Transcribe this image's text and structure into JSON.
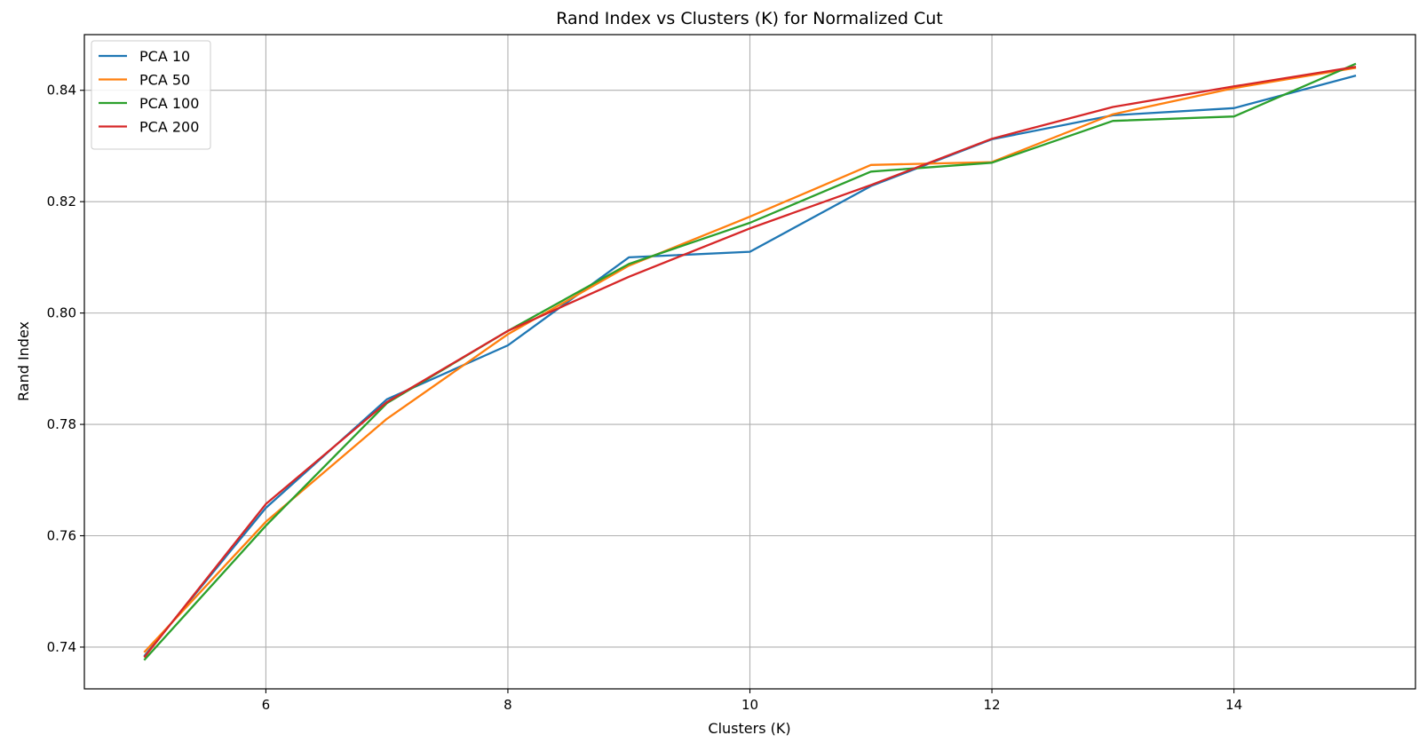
{
  "chart_data": {
    "type": "line",
    "title": "Rand Index vs Clusters (K) for Normalized Cut",
    "xlabel": "Clusters (K)",
    "ylabel": "Rand Index",
    "xlim": [
      4.5,
      15.5
    ],
    "ylim": [
      0.7325,
      0.85
    ],
    "xticks": [
      6,
      8,
      10,
      12,
      14
    ],
    "yticks": [
      0.74,
      0.76,
      0.78,
      0.8,
      0.82,
      0.84
    ],
    "xtick_labels": [
      "6",
      "8",
      "10",
      "12",
      "14"
    ],
    "ytick_labels": [
      "0.74",
      "0.76",
      "0.78",
      "0.80",
      "0.82",
      "0.84"
    ],
    "grid": true,
    "legend_position": "top-left",
    "x": [
      5,
      6,
      7,
      8,
      9,
      10,
      11,
      12,
      13,
      14,
      15
    ],
    "series": [
      {
        "name": "PCA 10",
        "color": "#1f77b4",
        "values": [
          0.7385,
          0.765,
          0.7845,
          0.7942,
          0.81,
          0.811,
          0.8228,
          0.8312,
          0.8355,
          0.8368,
          0.8426
        ]
      },
      {
        "name": "PCA 50",
        "color": "#ff7f0e",
        "values": [
          0.7392,
          0.7625,
          0.781,
          0.7962,
          0.8085,
          0.8173,
          0.8266,
          0.8271,
          0.8357,
          0.8404,
          0.844
        ]
      },
      {
        "name": "PCA 100",
        "color": "#2ca02c",
        "values": [
          0.7378,
          0.7618,
          0.7838,
          0.7968,
          0.8088,
          0.8162,
          0.8254,
          0.827,
          0.8345,
          0.8353,
          0.8447
        ]
      },
      {
        "name": "PCA 200",
        "color": "#d62728",
        "values": [
          0.7383,
          0.7657,
          0.784,
          0.7968,
          0.8065,
          0.8152,
          0.823,
          0.8313,
          0.837,
          0.8407,
          0.8442
        ]
      }
    ]
  }
}
